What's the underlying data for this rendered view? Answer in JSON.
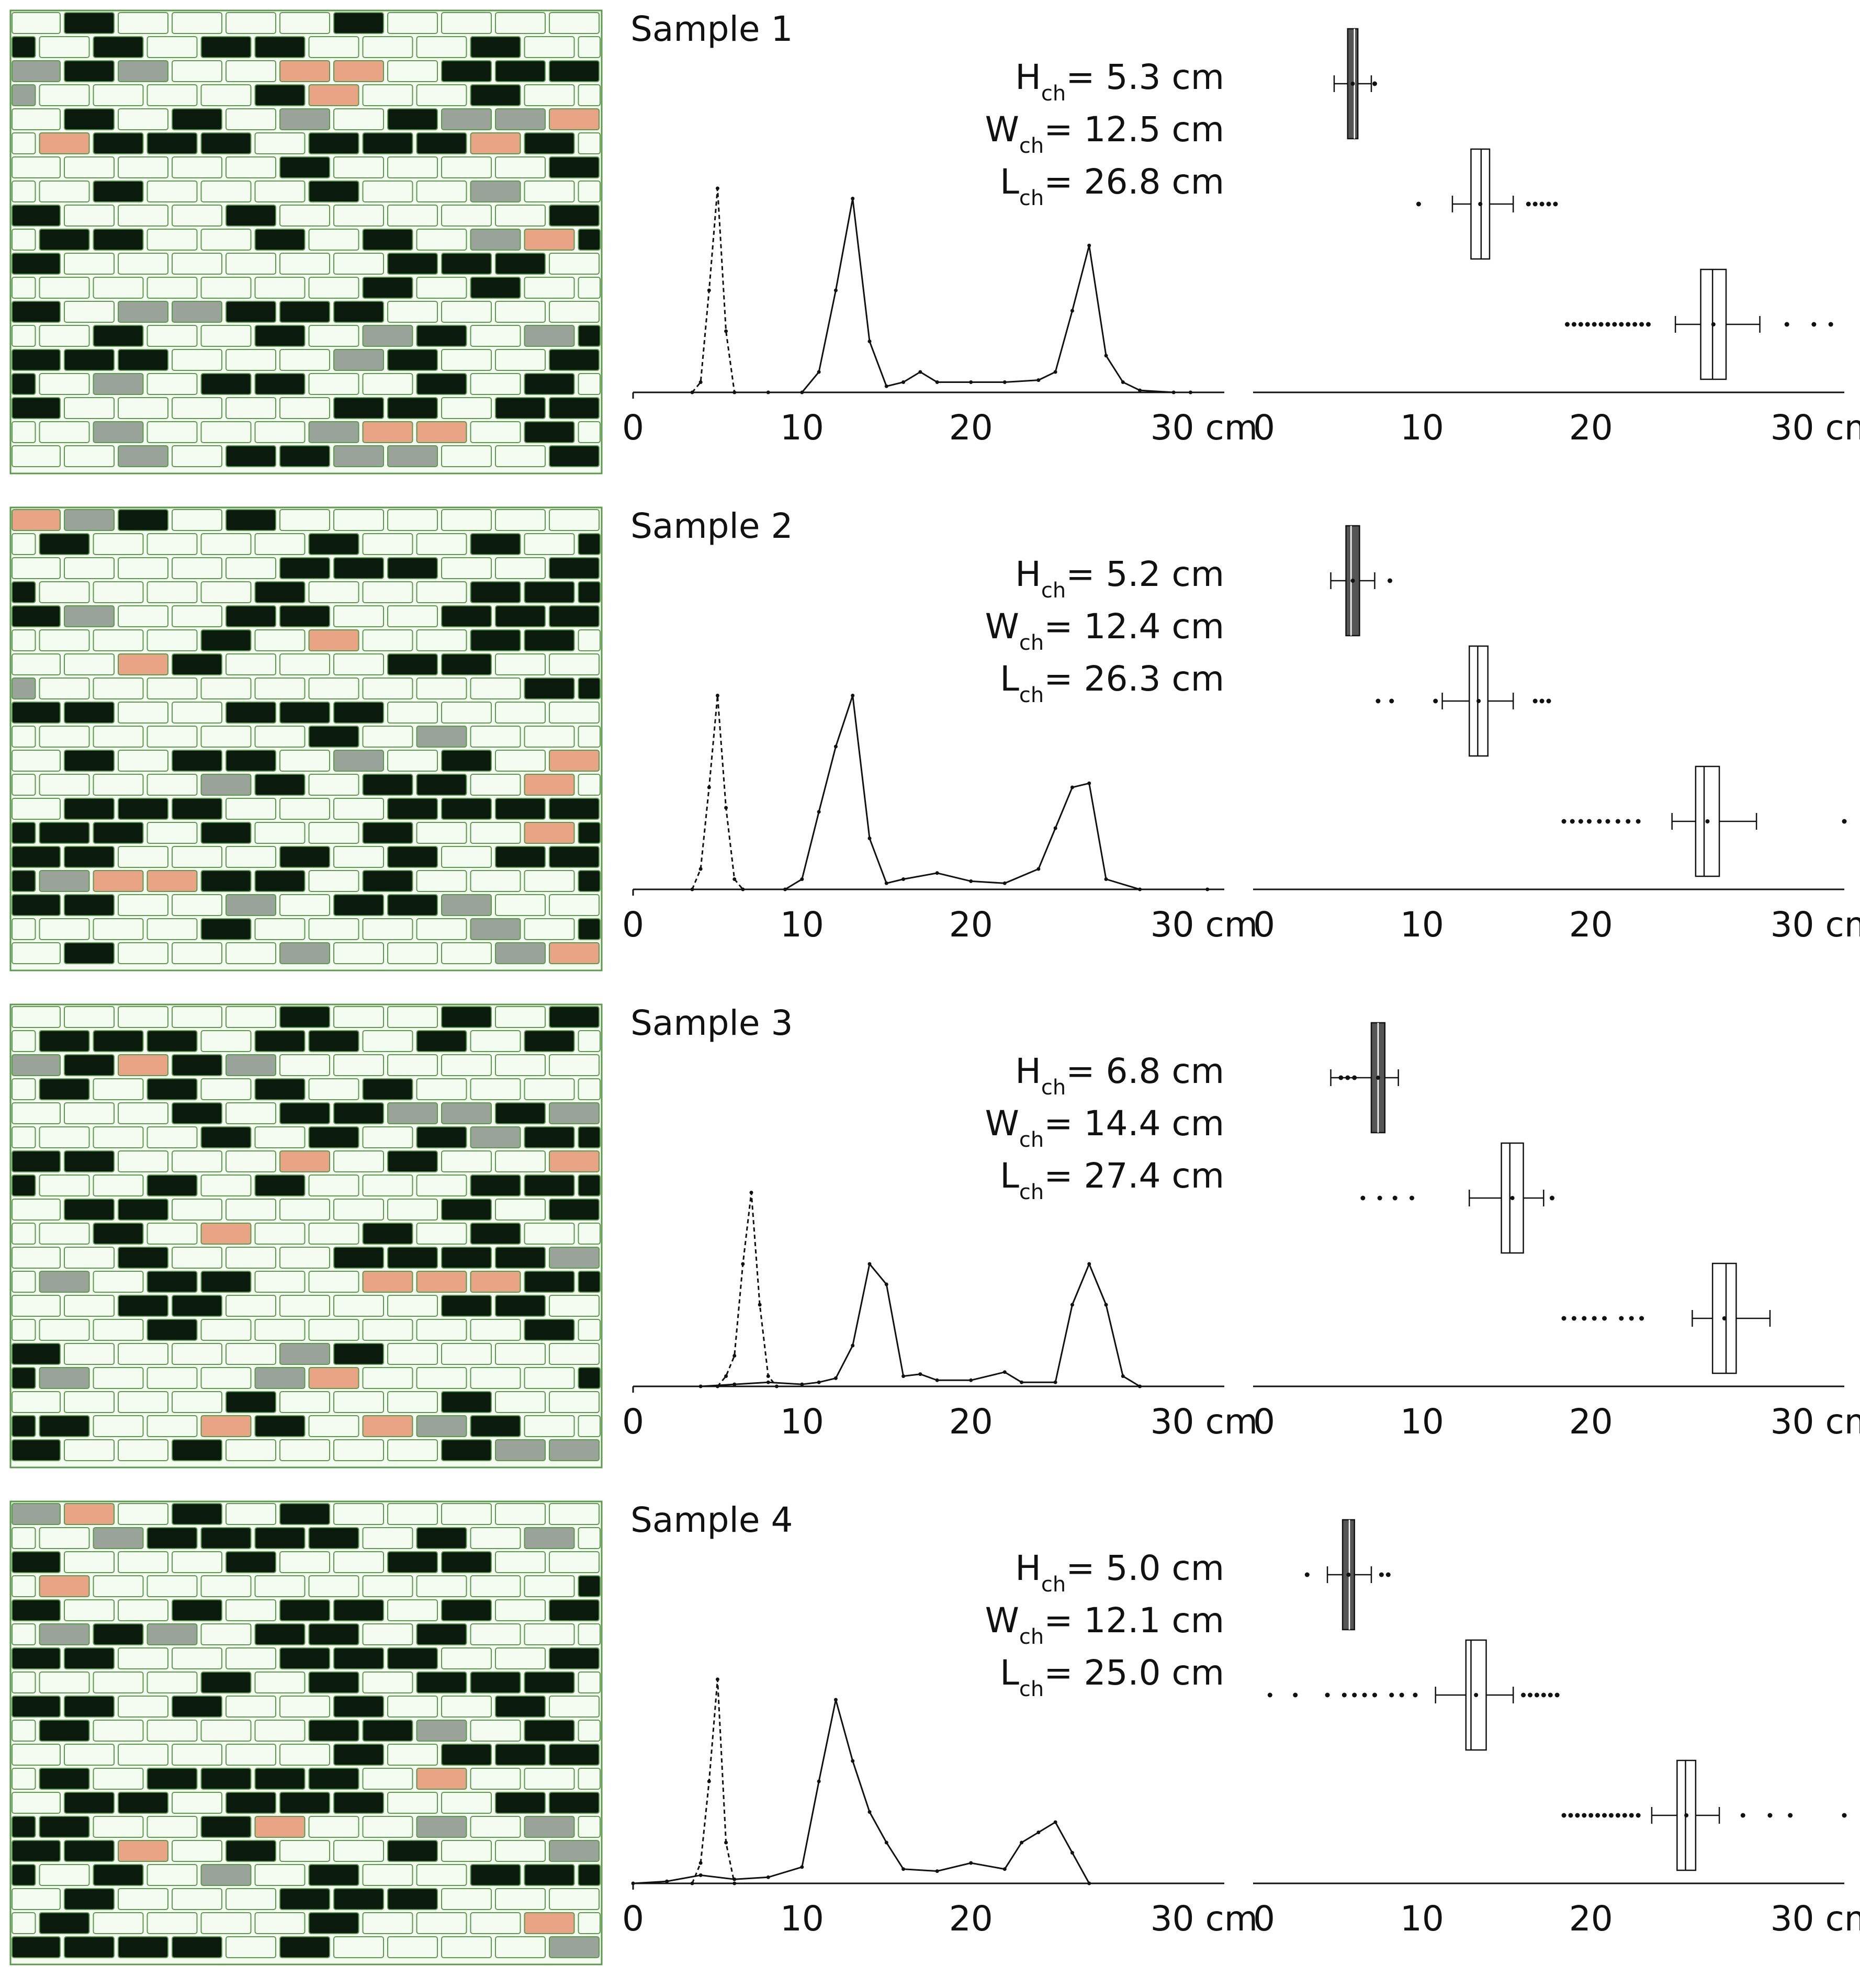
{
  "figure": {
    "axis_unit": "cm",
    "x_ticks": [
      "0",
      "10",
      "20",
      "30 cm"
    ],
    "colors": {
      "ink": "#111111",
      "brick": "#f4fbf0",
      "mortar": "#5a9a4a",
      "dark_brick": "#0a1a0c",
      "grey_brick": "#9aa39a",
      "orange_brick": "#e8a484"
    }
  },
  "chart_data": [
    {
      "type": "line",
      "panel": "Sample 1",
      "title": "Sample 1",
      "labels": {
        "H": "5.3 cm",
        "W": "12.5 cm",
        "L": "26.8 cm"
      },
      "xlim": [
        0,
        35
      ],
      "xticks": [
        0,
        10,
        20,
        30
      ],
      "height_distribution": {
        "x": [
          3.5,
          4.0,
          4.5,
          5.0,
          5.5,
          6.0
        ],
        "y": [
          0.0,
          0.05,
          0.5,
          1.0,
          0.3,
          0.0
        ]
      },
      "length_distribution": {
        "x": [
          8,
          10,
          11,
          12,
          13,
          14,
          15,
          16,
          17,
          18,
          20,
          22,
          24,
          25,
          26,
          27,
          28,
          29,
          30,
          32,
          33
        ],
        "y": [
          0.0,
          0.0,
          0.1,
          0.5,
          0.95,
          0.25,
          0.03,
          0.05,
          0.1,
          0.05,
          0.05,
          0.05,
          0.06,
          0.1,
          0.4,
          0.72,
          0.18,
          0.05,
          0.01,
          0.0,
          0.0
        ]
      },
      "boxplots": [
        {
          "name": "H",
          "q1": 5.6,
          "median": 6.0,
          "q3": 6.2,
          "whisker_low": 4.8,
          "whisker_high": 7.0,
          "outliers": [
            7.2
          ]
        },
        {
          "name": "W",
          "q1": 12.9,
          "median": 13.5,
          "q3": 14.0,
          "whisker_low": 11.8,
          "whisker_high": 15.4,
          "outliers": [
            9.8,
            16.3,
            16.7,
            17.1,
            17.5,
            17.9
          ]
        },
        {
          "name": "L",
          "q1": 26.5,
          "median": 27.2,
          "q3": 28.0,
          "whisker_low": 25.0,
          "whisker_high": 30.0,
          "outliers": [
            18.6,
            19.0,
            19.4,
            19.8,
            20.2,
            20.6,
            21.0,
            21.4,
            21.8,
            22.2,
            22.6,
            23.0,
            23.4,
            31.6,
            33.2,
            34.2
          ]
        }
      ]
    },
    {
      "type": "line",
      "panel": "Sample 2",
      "title": "Sample 2",
      "labels": {
        "H": "5.2 cm",
        "W": "12.4 cm",
        "L": "26.3 cm"
      },
      "xlim": [
        0,
        35
      ],
      "xticks": [
        0,
        10,
        20,
        30
      ],
      "height_distribution": {
        "x": [
          3.5,
          4.0,
          4.5,
          5.0,
          5.5,
          6.0,
          6.5
        ],
        "y": [
          0.0,
          0.1,
          0.5,
          0.95,
          0.4,
          0.05,
          0.0
        ]
      },
      "length_distribution": {
        "x": [
          9,
          10,
          11,
          12,
          13,
          14,
          15,
          16,
          18,
          20,
          22,
          24,
          25,
          26,
          27,
          28,
          30,
          34
        ],
        "y": [
          0.0,
          0.05,
          0.38,
          0.7,
          0.95,
          0.25,
          0.03,
          0.05,
          0.08,
          0.04,
          0.03,
          0.1,
          0.3,
          0.5,
          0.52,
          0.05,
          0.0,
          0.0
        ]
      },
      "boxplots": [
        {
          "name": "H",
          "q1": 5.5,
          "median": 5.8,
          "q3": 6.3,
          "whisker_low": 4.6,
          "whisker_high": 7.2,
          "outliers": [
            8.1
          ]
        },
        {
          "name": "W",
          "q1": 12.8,
          "median": 13.3,
          "q3": 13.9,
          "whisker_low": 11.2,
          "whisker_high": 15.4,
          "outliers": [
            7.4,
            8.2,
            10.8,
            16.7,
            17.1,
            17.5
          ]
        },
        {
          "name": "L",
          "q1": 26.2,
          "median": 26.7,
          "q3": 27.6,
          "whisker_low": 24.8,
          "whisker_high": 29.8,
          "outliers": [
            18.4,
            18.9,
            19.4,
            19.9,
            20.5,
            21.0,
            21.6,
            22.2,
            22.8,
            35.0
          ]
        }
      ]
    },
    {
      "type": "line",
      "panel": "Sample 3",
      "title": "Sample 3",
      "labels": {
        "H": "6.8 cm",
        "W": "14.4 cm",
        "L": "27.4 cm"
      },
      "xlim": [
        0,
        35
      ],
      "xticks": [
        0,
        10,
        20,
        30
      ],
      "height_distribution": {
        "x": [
          5.0,
          5.5,
          6.0,
          6.5,
          7.0,
          7.5,
          8.0,
          8.5
        ],
        "y": [
          0.0,
          0.05,
          0.15,
          0.6,
          0.95,
          0.4,
          0.05,
          0.0
        ]
      },
      "length_distribution": {
        "x": [
          4,
          6,
          8,
          10,
          11,
          12,
          13,
          14,
          15,
          16,
          17,
          18,
          20,
          22,
          23,
          25,
          26,
          27,
          28,
          29,
          30
        ],
        "y": [
          0.0,
          0.01,
          0.02,
          0.01,
          0.02,
          0.04,
          0.2,
          0.6,
          0.5,
          0.05,
          0.06,
          0.03,
          0.03,
          0.07,
          0.02,
          0.02,
          0.4,
          0.6,
          0.4,
          0.05,
          0.0
        ]
      },
      "boxplots": [
        {
          "name": "H",
          "q1": 7.0,
          "median": 7.4,
          "q3": 7.8,
          "whisker_low": 4.6,
          "whisker_high": 8.6,
          "outliers": [
            5.2,
            5.6,
            6.0
          ]
        },
        {
          "name": "W",
          "q1": 14.7,
          "median": 15.2,
          "q3": 16.0,
          "whisker_low": 12.8,
          "whisker_high": 17.2,
          "outliers": [
            6.5,
            7.5,
            8.4,
            9.4,
            17.7
          ]
        },
        {
          "name": "L",
          "q1": 27.2,
          "median": 28.0,
          "q3": 28.6,
          "whisker_low": 26.0,
          "whisker_high": 30.6,
          "outliers": [
            18.4,
            19.0,
            19.6,
            20.2,
            20.8,
            21.8,
            22.4,
            23.0
          ]
        }
      ]
    },
    {
      "type": "line",
      "panel": "Sample 4",
      "title": "Sample 4",
      "labels": {
        "H": "5.0 cm",
        "W": "12.1 cm",
        "L": "25.0 cm"
      },
      "xlim": [
        0,
        35
      ],
      "xticks": [
        0,
        10,
        20,
        30
      ],
      "height_distribution": {
        "x": [
          3.5,
          4.0,
          4.5,
          5.0,
          5.5,
          6.0
        ],
        "y": [
          0.0,
          0.1,
          0.5,
          1.0,
          0.2,
          0.0
        ]
      },
      "length_distribution": {
        "x": [
          0,
          2,
          4,
          6,
          8,
          10,
          11,
          12,
          13,
          14,
          15,
          16,
          18,
          20,
          22,
          23,
          24,
          25,
          26,
          27
        ],
        "y": [
          0.0,
          0.01,
          0.04,
          0.02,
          0.03,
          0.08,
          0.5,
          0.9,
          0.6,
          0.35,
          0.2,
          0.07,
          0.06,
          0.1,
          0.07,
          0.2,
          0.25,
          0.3,
          0.15,
          0.0
        ]
      },
      "boxplots": [
        {
          "name": "H",
          "q1": 5.3,
          "median": 5.7,
          "q3": 6.0,
          "whisker_low": 4.4,
          "whisker_high": 7.0,
          "outliers": [
            3.2,
            7.6,
            8.0
          ]
        },
        {
          "name": "W",
          "q1": 12.6,
          "median": 12.9,
          "q3": 13.8,
          "whisker_low": 10.8,
          "whisker_high": 15.4,
          "outliers": [
            1.0,
            2.5,
            4.4,
            5.4,
            6.0,
            6.6,
            7.2,
            8.2,
            8.8,
            9.6,
            16.0,
            16.4,
            16.8,
            17.2,
            17.6,
            18.0
          ]
        },
        {
          "name": "L",
          "q1": 25.1,
          "median": 25.6,
          "q3": 26.2,
          "whisker_low": 23.6,
          "whisker_high": 27.6,
          "outliers": [
            18.4,
            18.8,
            19.2,
            19.6,
            20.0,
            20.4,
            20.8,
            21.2,
            21.6,
            22.0,
            22.4,
            22.8,
            29.0,
            30.6,
            31.8,
            35.0
          ]
        }
      ]
    }
  ]
}
